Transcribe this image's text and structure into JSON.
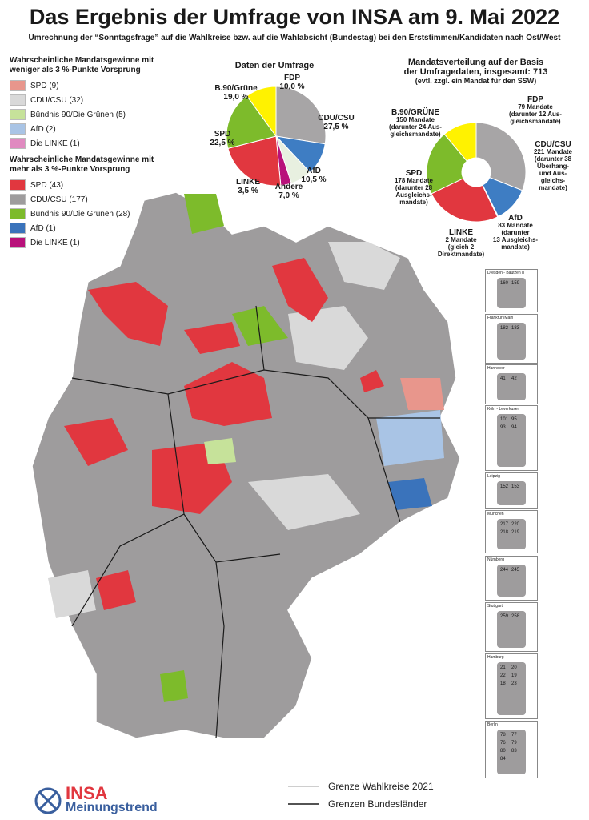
{
  "title": "Das Ergebnis der Umfrage von INSA am 9. Mai 2022",
  "subtitle": "Umrechnung der “Sonntagsfrage” auf die Wahlkreise bzw. auf die Wahlabsicht (Bundestag) bei den Erststimmen/Kandidaten nach Ost/West",
  "legend": {
    "group1_title": [
      "Wahrscheinliche Mandatsgewinne mit",
      "weniger als 3 %-Punkte Vorsprung"
    ],
    "group1": [
      {
        "label": "SPD (9)",
        "color": "#e8968c"
      },
      {
        "label": "CDU/CSU (32)",
        "color": "#d9d9d9"
      },
      {
        "label": "Bündnis 90/Die Grünen (5)",
        "color": "#c6e29a"
      },
      {
        "label": "AfD (2)",
        "color": "#a9c4e5"
      },
      {
        "label": "Die LINKE (1)",
        "color": "#e08ac0"
      }
    ],
    "group2_title": [
      "Wahrscheinliche Mandatsgewinne mit",
      "mehr als 3 %-Punkte Vorsprung"
    ],
    "group2": [
      {
        "label": "SPD (43)",
        "color": "#e1373f"
      },
      {
        "label": "CDU/CSU (177)",
        "color": "#9e9c9d"
      },
      {
        "label": "Bündnis 90/Die Grünen (28)",
        "color": "#7dbb2b"
      },
      {
        "label": "AfD (1)",
        "color": "#3a73bb"
      },
      {
        "label": "Die LINKE (1)",
        "color": "#b8117a"
      }
    ]
  },
  "poll": {
    "title": "Daten der Umfrage",
    "slices": [
      {
        "name": "CDU/CSU",
        "value": 27.5,
        "color": "#a7a5a6",
        "label1": "CDU/CSU",
        "label2": "27,5 %"
      },
      {
        "name": "AfD",
        "value": 10.5,
        "color": "#3e7dc3",
        "label1": "AfD",
        "label2": "10,5 %"
      },
      {
        "name": "Andere",
        "value": 7.0,
        "color": "#e8f0e0",
        "label1": "Andere",
        "label2": "7,0 %"
      },
      {
        "name": "LINKE",
        "value": 3.5,
        "color": "#b8117a",
        "label1": "LINKE",
        "label2": "3,5 %"
      },
      {
        "name": "SPD",
        "value": 22.5,
        "color": "#e1373f",
        "label1": "SPD",
        "label2": "22,5 %"
      },
      {
        "name": "B.90/Grüne",
        "value": 19.0,
        "color": "#7dbb2b",
        "label1": "B.90/Grüne",
        "label2": "19,0 %"
      },
      {
        "name": "FDP",
        "value": 10.0,
        "color": "#fff200",
        "label1": "FDP",
        "label2": "10,0 %"
      }
    ]
  },
  "seats": {
    "title": [
      "Mandatsverteilung auf der Basis",
      "der Umfragedaten, insgesamt: 713"
    ],
    "note": "(evtl. zzgl. ein Mandat für den SSW)",
    "slices": [
      {
        "name": "CDU/CSU",
        "value": 221,
        "color": "#a7a5a6",
        "lines": [
          "CDU/CSU",
          "221 Mandate",
          "(darunter 38",
          "Überhang-",
          "und Aus-",
          "gleichs-",
          "mandate)"
        ]
      },
      {
        "name": "AfD",
        "value": 83,
        "color": "#3e7dc3",
        "lines": [
          "AfD",
          "83 Mandate",
          "(darunter",
          "13 Ausgleichs-",
          "mandate)"
        ]
      },
      {
        "name": "LINKE",
        "value": 2,
        "color": "#b8117a",
        "lines": [
          "LINKE",
          "2 Mandate",
          "(gleich 2",
          "Direktmandate)"
        ]
      },
      {
        "name": "SPD",
        "value": 178,
        "color": "#e1373f",
        "lines": [
          "SPD",
          "178 Mandate",
          "(darunter 28",
          "Ausgleichs-",
          "mandate)"
        ]
      },
      {
        "name": "B.90/GRÜNE",
        "value": 150,
        "color": "#7dbb2b",
        "lines": [
          "B.90/GRÜNE",
          "150 Mandate",
          "(darunter 24 Aus-",
          "gleichsmandate)"
        ]
      },
      {
        "name": "FDP",
        "value": 79,
        "color": "#fff200",
        "lines": [
          "FDP",
          "79 Mandate",
          "(darunter 12 Aus-",
          "gleichsmandate)"
        ]
      }
    ]
  },
  "city_panels": [
    {
      "name": "Dresden - Bautzen II",
      "numbers": [
        "160",
        "159"
      ]
    },
    {
      "name": "Frankfurt/Main",
      "numbers": [
        "182",
        "183"
      ]
    },
    {
      "name": "Hannover",
      "numbers": [
        "41",
        "42"
      ]
    },
    {
      "name": "Köln - Leverkusen",
      "numbers": [
        "101",
        "95",
        "93",
        "94"
      ]
    },
    {
      "name": "Leipzig",
      "numbers": [
        "152",
        "153"
      ]
    },
    {
      "name": "München",
      "numbers": [
        "217",
        "220",
        "218",
        "219"
      ]
    },
    {
      "name": "Nürnberg",
      "numbers": [
        "244",
        "245"
      ]
    },
    {
      "name": "Stuttgart",
      "numbers": [
        "259",
        "258"
      ]
    },
    {
      "name": "Hamburg",
      "numbers": [
        "21",
        "20",
        "22",
        "19",
        "18",
        "23"
      ]
    },
    {
      "name": "Berlin",
      "numbers": [
        "78",
        "77",
        "76",
        "79",
        "80",
        "83",
        "84"
      ]
    }
  ],
  "map_legend": {
    "line1": "Grenze Wahlkreise 2021",
    "line2": "Grenzen Bundesländer"
  },
  "logo": {
    "text1": "INSA",
    "text2": "Meinungstrend"
  }
}
